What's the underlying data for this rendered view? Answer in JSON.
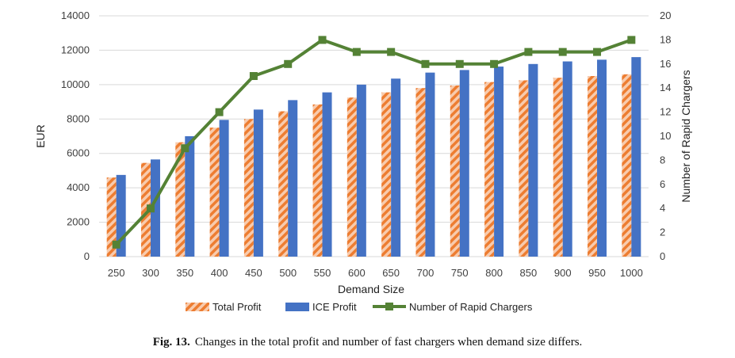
{
  "chart_data": {
    "type": "bar",
    "categories": [
      "250",
      "300",
      "350",
      "400",
      "450",
      "500",
      "550",
      "600",
      "650",
      "700",
      "750",
      "800",
      "850",
      "900",
      "950",
      "1000"
    ],
    "series": [
      {
        "name": "Total Profit",
        "type": "bar",
        "axis": "left",
        "color": "#ED7D31",
        "values": [
          4600,
          5450,
          6650,
          7500,
          8000,
          8450,
          8850,
          9250,
          9550,
          9800,
          9950,
          10150,
          10250,
          10400,
          10500,
          10600
        ]
      },
      {
        "name": "ICE Profit",
        "type": "bar",
        "axis": "left",
        "color": "#4472C4",
        "values": [
          4750,
          5650,
          7000,
          7950,
          8550,
          9100,
          9550,
          10000,
          10350,
          10700,
          10850,
          11050,
          11200,
          11350,
          11450,
          11600
        ]
      },
      {
        "name": "Number of Rapid Chargers",
        "type": "line",
        "axis": "right",
        "color": "#548235",
        "values": [
          1,
          4,
          9,
          12,
          15,
          16,
          18,
          17,
          17,
          16,
          16,
          16,
          17,
          17,
          17,
          18
        ]
      }
    ],
    "xlabel": "Demand Size",
    "ylabel": "EUR",
    "y2label": "Number of Rapid Chargers",
    "ylim": [
      0,
      14000
    ],
    "y2lim": [
      0,
      20
    ],
    "yticks": [
      "0",
      "2000",
      "4000",
      "6000",
      "8000",
      "10000",
      "12000",
      "14000"
    ],
    "y2ticks": [
      "0",
      "2",
      "4",
      "6",
      "8",
      "10",
      "12",
      "14",
      "16",
      "18",
      "20"
    ],
    "legend_position": "bottom"
  },
  "caption": {
    "label": "Fig. 13.",
    "text": "Changes in the total profit and number of fast chargers when demand size differs."
  }
}
